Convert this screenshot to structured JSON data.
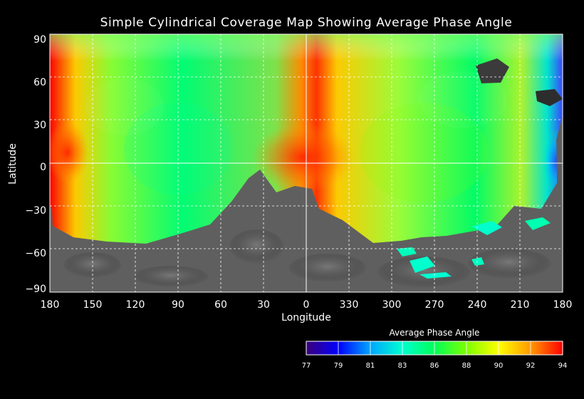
{
  "title": "Simple Cylindrical Coverage Map Showing Average Phase Angle",
  "axes": {
    "xlabel": "Longitude",
    "ylabel": "Latitude",
    "x_ticks": [
      "180",
      "150",
      "120",
      "90",
      "60",
      "30",
      "0",
      "330",
      "300",
      "270",
      "240",
      "210",
      "180"
    ],
    "y_ticks": [
      "90",
      "60",
      "30",
      "0",
      "−30",
      "−60",
      "−90"
    ]
  },
  "colorbar": {
    "title": "Average Phase Angle",
    "ticks": [
      "77",
      "79",
      "81",
      "83",
      "86",
      "88",
      "90",
      "92",
      "94"
    ],
    "colors": [
      "#3b007a",
      "#0000ff",
      "#00a6ff",
      "#00ffd0",
      "#00ff5a",
      "#7dff00",
      "#ffff00",
      "#ff9900",
      "#ff0000"
    ]
  },
  "colors": {
    "background": "#000000",
    "grid": "#ffffff",
    "uncovered_surface": "#5f5f5f"
  }
}
